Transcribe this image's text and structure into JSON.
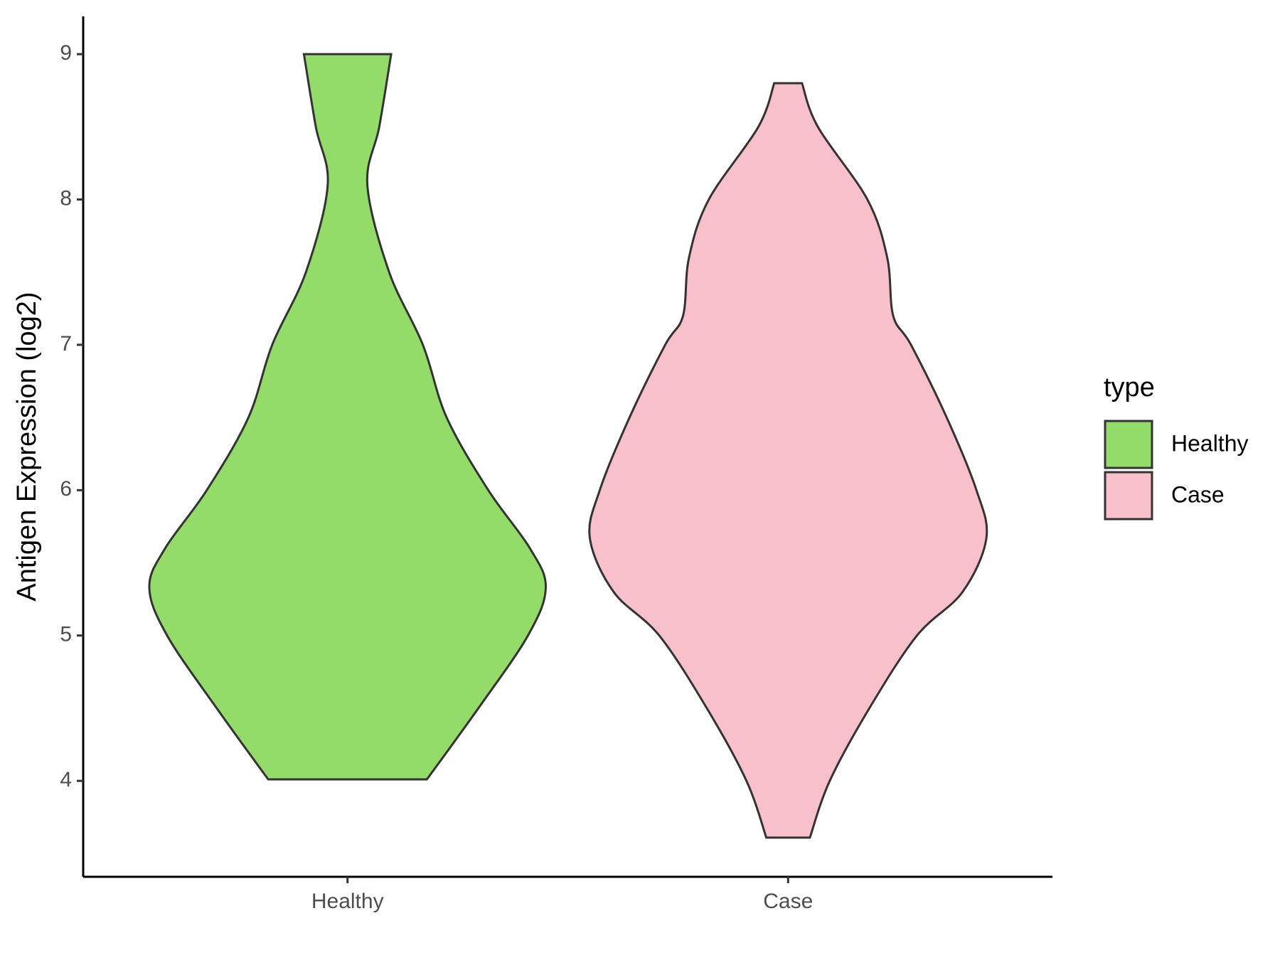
{
  "chart_data": {
    "type": "violin",
    "y_label": "Antigen Expression (log2)",
    "categories": [
      "Healthy",
      "Case"
    ],
    "legend_title": "type",
    "series": [
      {
        "name": "Healthy",
        "color": "#93dc6a",
        "y": [
          4.01,
          4.5,
          5,
          5.33,
          5.6,
          6,
          6.5,
          7,
          7.5,
          8.1,
          8.5,
          9
        ],
        "density": [
          0.4,
          0.66,
          0.91,
          1,
          0.92,
          0.71,
          0.5,
          0.38,
          0.21,
          0.1,
          0.16,
          0.22
        ]
      },
      {
        "name": "Case",
        "color": "#f8c0cb",
        "y": [
          3.61,
          4,
          4.5,
          5,
          5.3,
          5.67,
          6,
          6.5,
          7,
          7.2,
          7.6,
          8,
          8.5,
          8.8
        ],
        "density": [
          0.11,
          0.21,
          0.41,
          0.65,
          0.88,
          1,
          0.95,
          0.8,
          0.62,
          0.53,
          0.5,
          0.4,
          0.15,
          0.07
        ]
      }
    ],
    "ylim": [
      3.34,
      9.26
    ],
    "yticks": [
      4,
      5,
      6,
      7,
      8,
      9
    ]
  }
}
